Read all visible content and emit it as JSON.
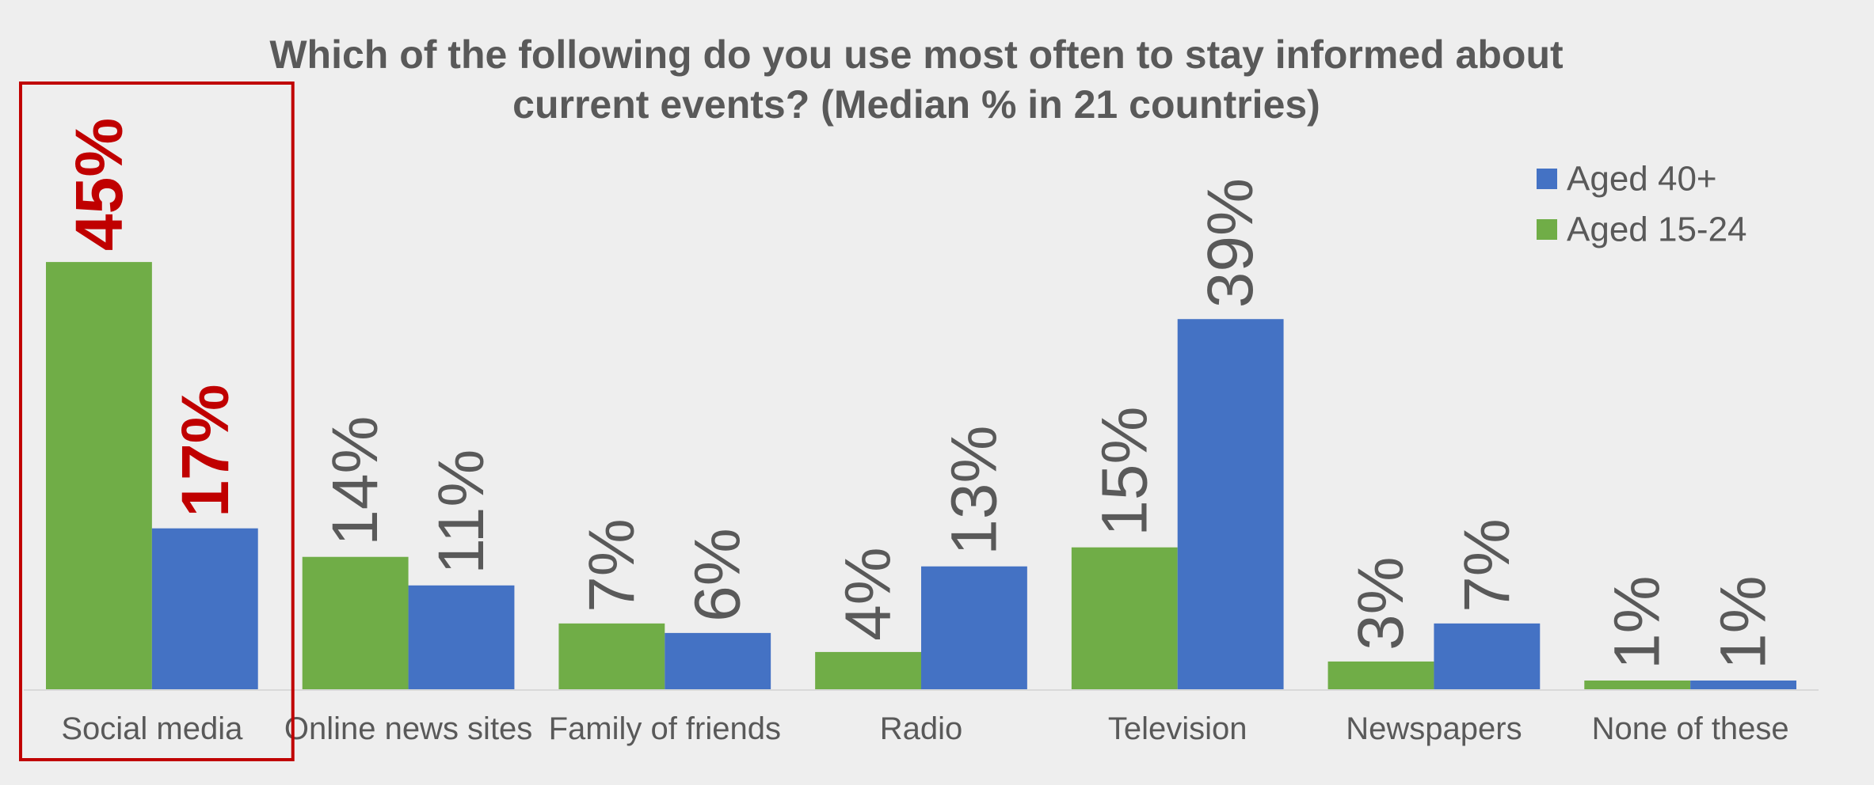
{
  "chart_data": {
    "type": "bar",
    "title_line1": "Which of the following do you use most often to stay informed about",
    "title_line2": "current events? (Median % in 21 countries)",
    "categories": [
      "Social media",
      "Online news sites",
      "Family of friends",
      "Radio",
      "Television",
      "Newspapers",
      "None of these"
    ],
    "series": [
      {
        "name": "Aged 15-24",
        "values": [
          45,
          14,
          7,
          4,
          15,
          3,
          1
        ],
        "color": "#70ad47"
      },
      {
        "name": "Aged 40+",
        "values": [
          17,
          11,
          6,
          13,
          39,
          7,
          1
        ],
        "color": "#4472c4"
      }
    ],
    "value_suffix": "%",
    "legend_order": [
      "Aged 40+",
      "Aged 15-24"
    ],
    "legend_position": "top-right",
    "ylim": [
      0,
      50
    ],
    "grid": false,
    "highlight": {
      "category": "Social media",
      "color": "#c00000"
    },
    "label_color": "#595959"
  }
}
